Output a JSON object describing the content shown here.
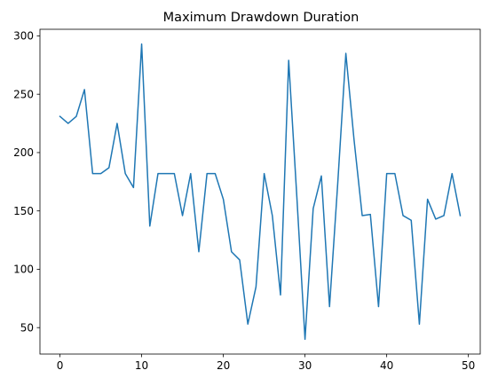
{
  "chart_data": {
    "type": "line",
    "title": "Maximum Drawdown Duration",
    "xlabel": "",
    "ylabel": "",
    "xlim": [
      -2.45,
      51.45
    ],
    "ylim": [
      27.35,
      305.65
    ],
    "xticks": [
      0,
      10,
      20,
      30,
      40,
      50
    ],
    "yticks": [
      50,
      100,
      150,
      200,
      250,
      300
    ],
    "grid": false,
    "legend": false,
    "series": [
      {
        "color": "#1f77b4",
        "x": [
          0,
          1,
          2,
          3,
          4,
          5,
          6,
          7,
          8,
          9,
          10,
          11,
          12,
          13,
          14,
          15,
          16,
          17,
          18,
          19,
          20,
          21,
          22,
          23,
          24,
          25,
          26,
          27,
          28,
          29,
          30,
          31,
          32,
          33,
          34,
          35,
          36,
          37,
          38,
          39,
          40,
          41,
          42,
          43,
          44,
          45,
          46,
          47,
          48,
          49
        ],
        "values": [
          231,
          225,
          231,
          254,
          182,
          182,
          187,
          225,
          182,
          170,
          293,
          137,
          182,
          182,
          182,
          146,
          182,
          115,
          182,
          182,
          160,
          115,
          108,
          53,
          85,
          182,
          146,
          78,
          279,
          162,
          40,
          152,
          180,
          68,
          173,
          285,
          211,
          146,
          147,
          68,
          182,
          182,
          146,
          142,
          53,
          160,
          143,
          146,
          182,
          146
        ]
      }
    ]
  }
}
